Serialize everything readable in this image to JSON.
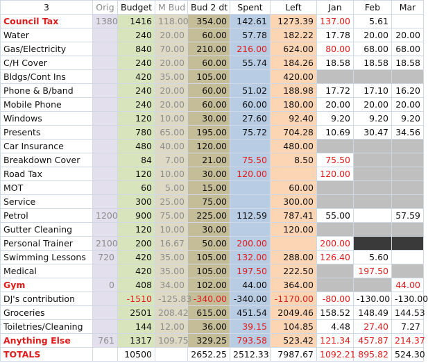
{
  "headers": [
    "3",
    "Orig",
    "Budget",
    "M Bud",
    "Bud 2 dt",
    "Spent",
    "Left",
    "Jan",
    "Feb",
    "Mar"
  ],
  "rows": [
    {
      "name": "Council Tax",
      "name_red": true,
      "name_bold": true,
      "orig": "1380",
      "budget": "1416",
      "mbud": "118.00",
      "bud2": "354.00",
      "spent": "142.61",
      "left": "1273.39",
      "jan": "137.00",
      "feb": "5.61",
      "mar": "",
      "red": [
        "jan"
      ],
      "grey": []
    },
    {
      "name": "Water",
      "orig": "",
      "budget": "240",
      "mbud": "20.00",
      "bud2": "60.00",
      "spent": "57.78",
      "left": "182.22",
      "jan": "17.78",
      "feb": "20.00",
      "mar": "20.00",
      "red": [],
      "grey": []
    },
    {
      "name": "Gas/Electricity",
      "orig": "",
      "budget": "840",
      "mbud": "70.00",
      "bud2": "210.00",
      "spent": "216.00",
      "left": "624.00",
      "jan": "80.00",
      "feb": "68.00",
      "mar": "68.00",
      "red": [
        "spent",
        "jan"
      ],
      "grey": []
    },
    {
      "name": "C/H Cover",
      "orig": "",
      "budget": "240",
      "mbud": "20.00",
      "bud2": "60.00",
      "spent": "55.74",
      "left": "184.26",
      "jan": "18.58",
      "feb": "18.58",
      "mar": "18.58",
      "red": [],
      "grey": []
    },
    {
      "name": "Bldgs/Cont Ins",
      "orig": "",
      "budget": "420",
      "mbud": "35.00",
      "bud2": "105.00",
      "spent": "",
      "left": "420.00",
      "jan": "",
      "feb": "",
      "mar": "",
      "red": [],
      "grey": [
        "jan",
        "feb",
        "mar"
      ]
    },
    {
      "name": "Phone & B/band",
      "orig": "",
      "budget": "240",
      "mbud": "20.00",
      "bud2": "60.00",
      "spent": "51.02",
      "left": "188.98",
      "jan": "17.72",
      "feb": "17.10",
      "mar": "16.20",
      "red": [],
      "grey": []
    },
    {
      "name": "Mobile Phone",
      "orig": "",
      "budget": "240",
      "mbud": "20.00",
      "bud2": "60.00",
      "spent": "60.00",
      "left": "180.00",
      "jan": "20.00",
      "feb": "20.00",
      "mar": "20.00",
      "red": [],
      "grey": []
    },
    {
      "name": "Windows",
      "orig": "",
      "budget": "120",
      "mbud": "10.00",
      "bud2": "30.00",
      "spent": "27.60",
      "left": "92.40",
      "jan": "9.20",
      "feb": "9.20",
      "mar": "9.20",
      "red": [],
      "grey": []
    },
    {
      "name": "Presents",
      "orig": "",
      "budget": "780",
      "mbud": "65.00",
      "bud2": "195.00",
      "spent": "75.72",
      "left": "704.28",
      "jan": "10.69",
      "feb": "30.47",
      "mar": "34.56",
      "red": [],
      "grey": []
    },
    {
      "name": "Car Insurance",
      "orig": "",
      "budget": "480",
      "mbud": "40.00",
      "bud2": "120.00",
      "spent": "",
      "left": "480.00",
      "jan": "",
      "feb": "",
      "mar": "",
      "red": [],
      "grey": [
        "jan",
        "feb",
        "mar"
      ]
    },
    {
      "name": "Breakdown Cover",
      "orig": "",
      "budget": "84",
      "mbud": "7.00",
      "bud2": "21.00",
      "spent": "75.50",
      "left": "8.50",
      "jan": "75.50",
      "feb": "",
      "mar": "",
      "red": [
        "spent",
        "jan"
      ],
      "grey": [
        "feb",
        "mar"
      ]
    },
    {
      "name": "Road Tax",
      "orig": "",
      "budget": "120",
      "mbud": "10.00",
      "bud2": "30.00",
      "spent": "120.00",
      "left": "",
      "jan": "120.00",
      "feb": "",
      "mar": "",
      "red": [
        "spent",
        "jan"
      ],
      "grey": [
        "feb",
        "mar"
      ]
    },
    {
      "name": "MOT",
      "orig": "",
      "budget": "60",
      "mbud": "5.00",
      "bud2": "15.00",
      "spent": "",
      "left": "60.00",
      "jan": "",
      "feb": "",
      "mar": "",
      "red": [],
      "grey": [
        "jan",
        "feb",
        "mar"
      ]
    },
    {
      "name": "Service",
      "orig": "",
      "budget": "300",
      "mbud": "25.00",
      "bud2": "75.00",
      "spent": "",
      "left": "300.00",
      "jan": "",
      "feb": "",
      "mar": "",
      "red": [],
      "grey": [
        "jan",
        "feb",
        "mar"
      ]
    },
    {
      "name": "Petrol",
      "orig": "1200",
      "budget": "900",
      "mbud": "75.00",
      "bud2": "225.00",
      "spent": "112.59",
      "left": "787.41",
      "jan": "55.00",
      "feb": "",
      "mar": "57.59",
      "red": [],
      "grey": []
    },
    {
      "name": "Gutter Cleaning",
      "orig": "",
      "budget": "120",
      "mbud": "10.00",
      "bud2": "30.00",
      "spent": "",
      "left": "120.00",
      "jan": "",
      "feb": "",
      "mar": "",
      "red": [],
      "grey": [
        "jan",
        "feb",
        "mar"
      ]
    },
    {
      "name": "Personal Trainer",
      "orig": "2100",
      "budget": "200",
      "mbud": "16.67",
      "bud2": "50.00",
      "spent": "200.00",
      "left": "",
      "jan": "200.00",
      "feb": "",
      "mar": "",
      "red": [
        "spent",
        "jan"
      ],
      "grey": [],
      "dark": [
        "feb",
        "mar"
      ]
    },
    {
      "name": "Swimming Lessons",
      "orig": "720",
      "budget": "420",
      "mbud": "35.00",
      "bud2": "105.00",
      "spent": "132.00",
      "left": "288.00",
      "jan": "126.40",
      "feb": "5.60",
      "mar": "",
      "red": [
        "spent",
        "jan"
      ],
      "grey": []
    },
    {
      "name": "Medical",
      "orig": "",
      "budget": "420",
      "mbud": "35.00",
      "bud2": "105.00",
      "spent": "197.50",
      "left": "222.50",
      "jan": "",
      "feb": "197.50",
      "mar": "",
      "red": [
        "spent",
        "feb"
      ],
      "grey": [
        "jan",
        "mar"
      ]
    },
    {
      "name": "Gym",
      "name_red": true,
      "name_bold": true,
      "orig": "0",
      "budget": "408",
      "mbud": "34.00",
      "bud2": "102.00",
      "spent": "44.00",
      "left": "364.00",
      "jan": "",
      "feb": "",
      "mar": "44.00",
      "red": [
        "mar"
      ],
      "grey": [
        "jan",
        "feb"
      ]
    },
    {
      "name": "DJ's contribution",
      "orig": "",
      "budget": "-1510",
      "mbud": "-125.83",
      "bud2": "-340.00",
      "spent": "-340.00",
      "left": "-1170.00",
      "jan": "-80.00",
      "feb": "-130.00",
      "mar": "-130.00",
      "red": [
        "budget",
        "bud2",
        "left",
        "jan"
      ],
      "grey": []
    },
    {
      "name": "Groceries",
      "orig": "",
      "budget": "2501",
      "mbud": "208.42",
      "bud2": "615.00",
      "spent": "451.54",
      "left": "2049.46",
      "jan": "158.52",
      "feb": "148.49",
      "mar": "144.53",
      "red": [],
      "grey": []
    },
    {
      "name": "Toiletries/Cleaning",
      "orig": "",
      "budget": "144",
      "mbud": "12.00",
      "bud2": "36.00",
      "spent": "39.15",
      "left": "104.85",
      "jan": "4.48",
      "feb": "27.40",
      "mar": "7.27",
      "red": [
        "spent",
        "feb"
      ],
      "grey": []
    },
    {
      "name": "Anything Else",
      "name_red": true,
      "name_bold": true,
      "orig": "761",
      "budget": "1317",
      "mbud": "109.75",
      "bud2": "329.25",
      "spent": "793.58",
      "left": "523.42",
      "jan": "121.34",
      "feb": "457.87",
      "mar": "214.37",
      "red": [
        "spent",
        "jan",
        "feb",
        "mar"
      ],
      "grey": []
    }
  ],
  "totals": {
    "name": "TOTALS",
    "orig": "",
    "budget": "10500",
    "mbud": "",
    "bud2": "2652.25",
    "spent": "2512.33",
    "left": "7987.67",
    "jan": "1092.21",
    "feb": "895.82",
    "mar": "524.30",
    "red": [
      "jan",
      "feb"
    ]
  },
  "colors": {
    "accent_red": "#e01b1b",
    "orig_bg": "#e4dfec",
    "budget_bg": "#d8e4bc",
    "mbud_bg": "#ddd9c4",
    "bud2_bg": "#c4bd97",
    "spent_bg": "#b8cce4",
    "left_bg": "#fcd5b4",
    "grey_cell": "#bfbfbf",
    "dark_cell": "#3a3a3a"
  }
}
